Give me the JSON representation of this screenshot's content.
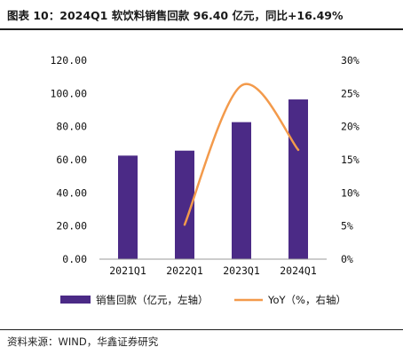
{
  "title": "图表 10：2024Q1 软饮料销售回款 96.40 亿元，同比+16.49%",
  "source": "资料来源：WIND，华鑫证券研究",
  "colors": {
    "bar": "#4b2a86",
    "line": "#f39a4b",
    "axis": "#999999"
  },
  "chart_data": {
    "type": "bar",
    "title": "图表 10：2024Q1 软饮料销售回款 96.40 亿元，同比+16.49%",
    "categories": [
      "2021Q1",
      "2022Q1",
      "2023Q1",
      "2024Q1"
    ],
    "series": [
      {
        "name": "销售回款（亿元，左轴）",
        "type": "bar",
        "axis": "left",
        "values": [
          62.5,
          65.5,
          82.7,
          96.4
        ]
      },
      {
        "name": "YoY（%，右轴）",
        "type": "line",
        "axis": "right",
        "values": [
          null,
          5.2,
          26.2,
          16.49
        ]
      }
    ],
    "y_left": {
      "ylim": [
        0,
        120
      ],
      "ticks": [
        "0.00",
        "20.00",
        "40.00",
        "60.00",
        "80.00",
        "100.00",
        "120.00"
      ]
    },
    "y_right": {
      "ylim": [
        0,
        30
      ],
      "ticks": [
        "0%",
        "5%",
        "10%",
        "15%",
        "20%",
        "25%",
        "30%"
      ]
    },
    "grid": false,
    "legend_position": "bottom"
  }
}
